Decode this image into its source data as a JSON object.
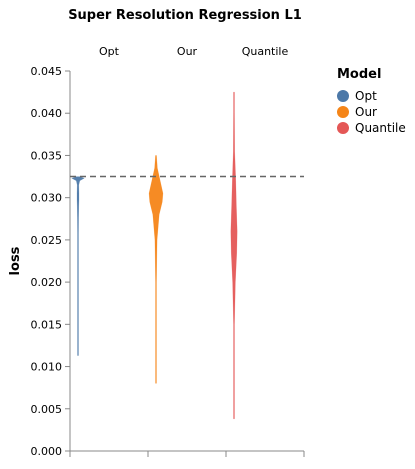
{
  "chart_data": {
    "type": "violin",
    "title": "Super Resolution Regression L1",
    "xlabel": "",
    "ylabel": "loss",
    "ylim": [
      0,
      0.045
    ],
    "y_ticks": [
      "0.000",
      "0.005",
      "0.010",
      "0.015",
      "0.020",
      "0.025",
      "0.030",
      "0.035",
      "0.040",
      "0.045"
    ],
    "grid": false,
    "legend_position": "top-right",
    "legend_title": "Model",
    "reference_line": {
      "y": 0.0325,
      "style": "dashed",
      "color": "#666666"
    },
    "series": [
      {
        "name": "Opt",
        "color": "#4c78a8",
        "range": [
          0.0113,
          0.0325
        ],
        "density": [
          [
            0.0113,
            0.03
          ],
          [
            0.0258,
            0.05
          ],
          [
            0.0276,
            0.08
          ],
          [
            0.029,
            0.12
          ],
          [
            0.0298,
            0.15
          ],
          [
            0.0305,
            0.15
          ],
          [
            0.0315,
            0.12
          ],
          [
            0.032,
            0.25
          ],
          [
            0.0323,
            0.9
          ],
          [
            0.0325,
            0.25
          ]
        ]
      },
      {
        "name": "Our",
        "color": "#f58518",
        "range": [
          0.008,
          0.035
        ],
        "density": [
          [
            0.008,
            0.0
          ],
          [
            0.01,
            0.01
          ],
          [
            0.015,
            0.02
          ],
          [
            0.02,
            0.04
          ],
          [
            0.025,
            0.15
          ],
          [
            0.028,
            0.45
          ],
          [
            0.0295,
            0.9
          ],
          [
            0.0305,
            1.0
          ],
          [
            0.032,
            0.6
          ],
          [
            0.0335,
            0.2
          ],
          [
            0.035,
            0.0
          ]
        ]
      },
      {
        "name": "Quantile",
        "color": "#e45756",
        "range": [
          0.0038,
          0.0425
        ],
        "density": [
          [
            0.0038,
            0.0
          ],
          [
            0.008,
            0.01
          ],
          [
            0.015,
            0.05
          ],
          [
            0.02,
            0.2
          ],
          [
            0.0235,
            0.4
          ],
          [
            0.026,
            0.45
          ],
          [
            0.029,
            0.35
          ],
          [
            0.032,
            0.25
          ],
          [
            0.0355,
            0.1
          ],
          [
            0.04,
            0.02
          ],
          [
            0.0425,
            0.0
          ]
        ]
      }
    ]
  }
}
